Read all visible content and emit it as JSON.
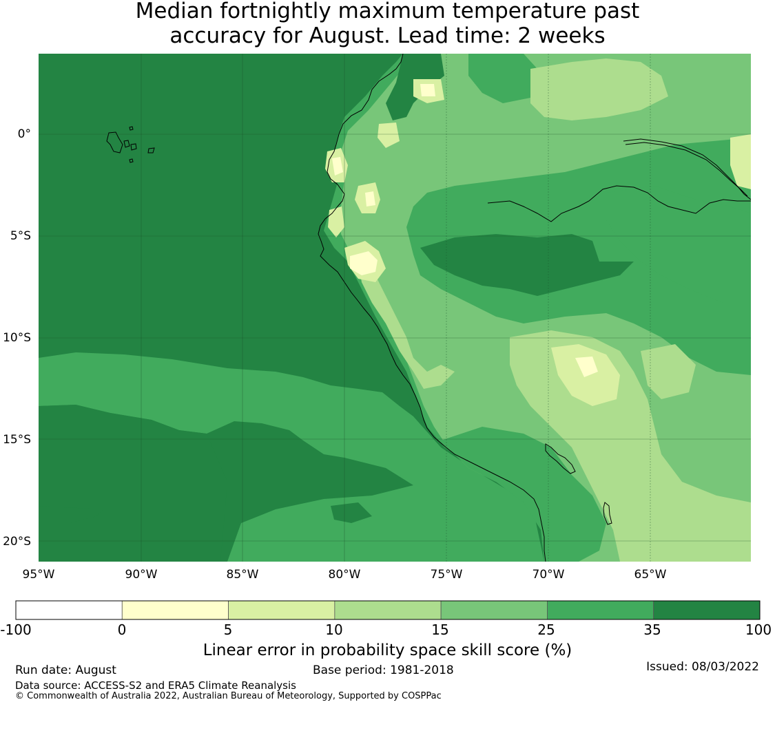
{
  "title": {
    "line1": "Median fortnightly maximum temperature past",
    "line2": "accuracy for August. Lead time: 2 weeks"
  },
  "map": {
    "lon_range": [
      -95,
      -60
    ],
    "lat_range": [
      -21,
      4
    ],
    "x_ticks": [
      "95°W",
      "90°W",
      "85°W",
      "80°W",
      "75°W",
      "70°W",
      "65°W"
    ],
    "y_ticks": [
      "0°",
      "5°S",
      "10°S",
      "15°S",
      "20°S"
    ],
    "gridlines": true,
    "ocean_class": "35-100",
    "land_classes_present": [
      "0-5",
      "5-10",
      "10-15",
      "15-25",
      "25-35",
      "35-100"
    ]
  },
  "colorbar": {
    "ticks": [
      "-100",
      "0",
      "5",
      "10",
      "15",
      "25",
      "35",
      "100"
    ],
    "colors": [
      "#ffffff",
      "#ffffcc",
      "#d9f0a3",
      "#addd8e",
      "#78c679",
      "#41ab5d",
      "#238443"
    ],
    "label": "Linear error in probability space skill score (%)"
  },
  "footer": {
    "run_date": "Run date: August",
    "base_period": "Base period: 1981-2018",
    "issued": "Issued: 08/03/2022",
    "data_source": "Data source: ACCESS-S2 and ERA5 Climate Reanalysis",
    "copyright": "© Commonwealth of Australia 2022, Australian Bureau of Meteorology, Supported by COSPPac"
  }
}
